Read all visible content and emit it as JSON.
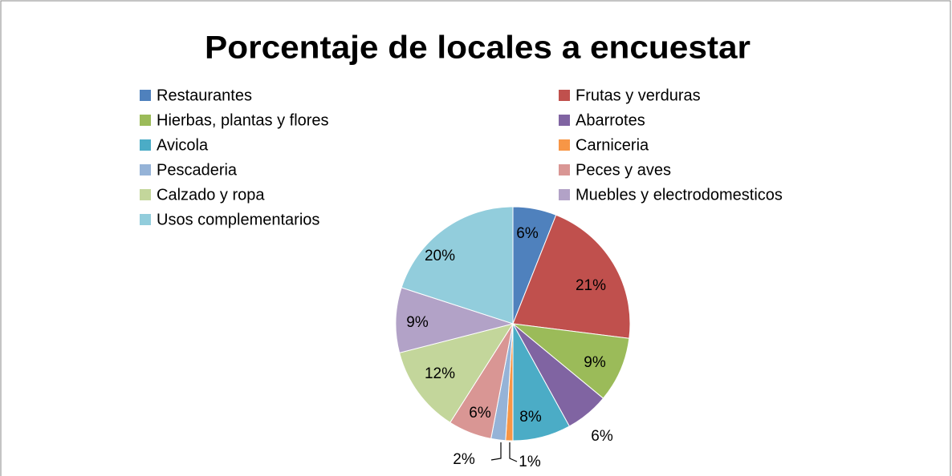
{
  "chart_data": {
    "type": "pie",
    "title": "Porcentaje de locales a encuestar",
    "categories": [
      "Restaurantes",
      "Frutas y verduras",
      "Hierbas, plantas y flores",
      "Abarrotes",
      "Avicola",
      "Carniceria",
      "Pescaderia",
      "Peces y aves",
      "Calzado y ropa",
      "Muebles y electrodomesticos",
      "Usos complementarios"
    ],
    "values": [
      6,
      21,
      9,
      6,
      8,
      1,
      2,
      6,
      12,
      9,
      20
    ],
    "value_labels": [
      "6%",
      "21%",
      "9%",
      "6%",
      "8%",
      "1%",
      "2%",
      "6%",
      "12%",
      "9%",
      "20%"
    ],
    "colors": [
      "#4F81BD",
      "#C0504D",
      "#9BBB59",
      "#8064A2",
      "#4BACC6",
      "#F79646",
      "#95B3D7",
      "#D99694",
      "#C3D69B",
      "#B2A2C7",
      "#92CDDC"
    ],
    "legend": "top"
  }
}
